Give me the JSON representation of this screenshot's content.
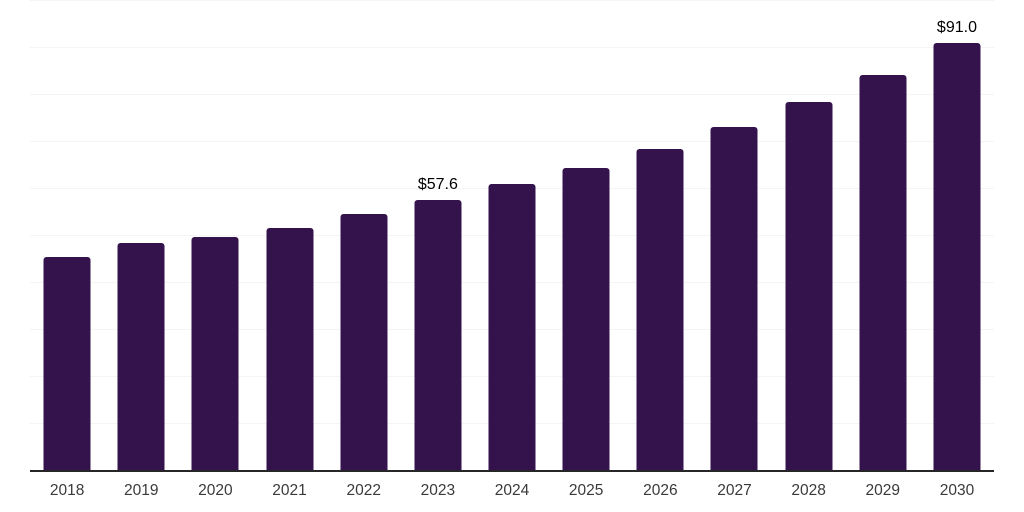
{
  "chart_data": {
    "type": "bar",
    "title": "",
    "categories": [
      "2018",
      "2019",
      "2020",
      "2021",
      "2022",
      "2023",
      "2024",
      "2025",
      "2026",
      "2027",
      "2028",
      "2029",
      "2030"
    ],
    "values": [
      45.5,
      48.6,
      49.7,
      51.7,
      54.6,
      57.6,
      61.1,
      64.4,
      68.5,
      73.1,
      78.6,
      84.2,
      91.0
    ],
    "data_labels": [
      {
        "category": "2023",
        "text": "$57.6"
      },
      {
        "category": "2030",
        "text": "$91.0"
      }
    ],
    "xlabel": "",
    "ylabel": "",
    "ylim": [
      0,
      100
    ],
    "gridline_step": 10,
    "grid": true,
    "legend": "none",
    "y_axis_labels_visible": false,
    "colors": {
      "bar": "#34134d",
      "gridline": "#f4f4f6",
      "axis": "#262626",
      "tick_label": "#3a3a3a",
      "data_label": "#000000",
      "background": "#ffffff"
    }
  }
}
